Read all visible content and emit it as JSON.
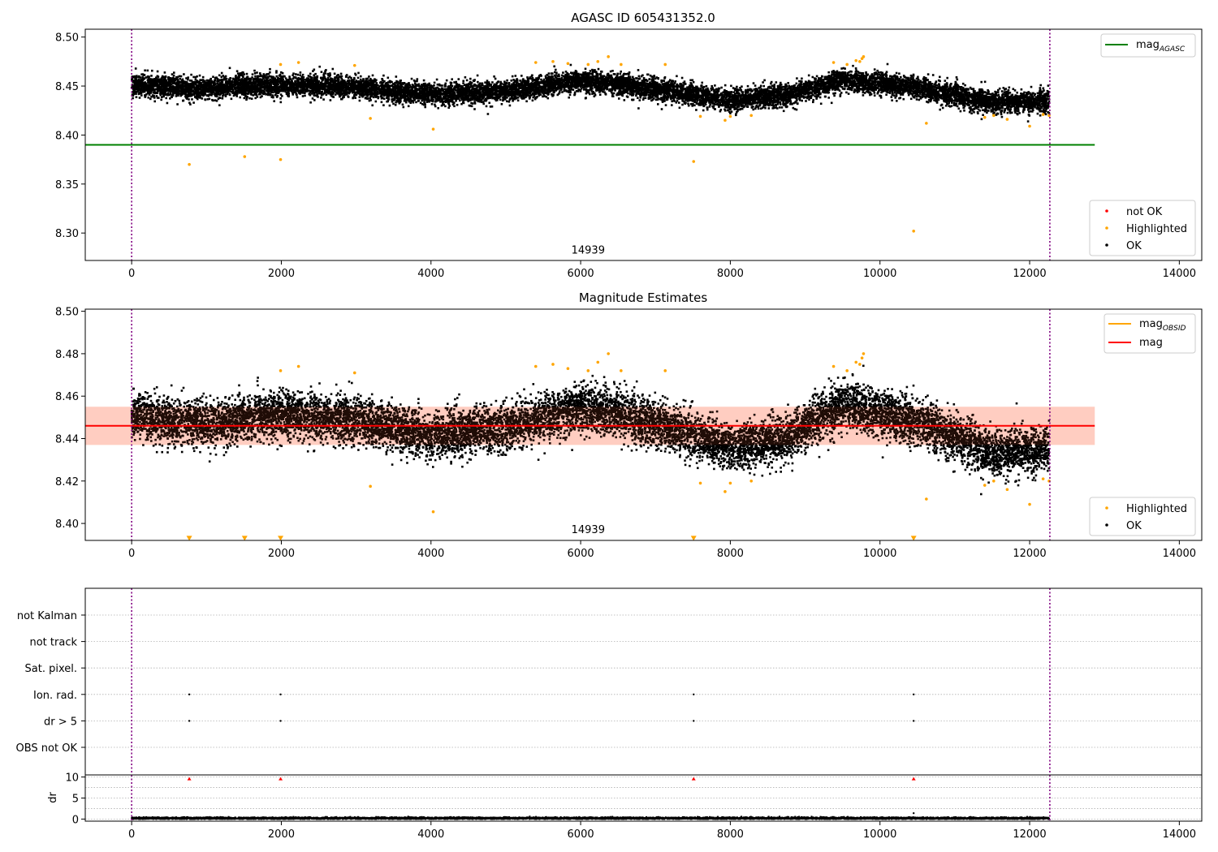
{
  "chart_data": [
    {
      "id": "p1",
      "type": "scatter",
      "title": "AGASC ID 605431352.0",
      "xlim": [
        -620,
        14300
      ],
      "ylim": [
        8.272,
        8.508
      ],
      "xticks": [
        0,
        2000,
        4000,
        6000,
        8000,
        10000,
        12000,
        14000
      ],
      "yticks": [
        8.3,
        8.35,
        8.4,
        8.45,
        8.5
      ],
      "ytick_labels": [
        "8.30",
        "8.35",
        "8.40",
        "8.45",
        "8.50"
      ],
      "obs_boundaries": [
        0,
        12270
      ],
      "obs_label": {
        "text": "14939",
        "x": 6100,
        "y": 8.279
      },
      "mag_agasc": {
        "value": 8.39,
        "x_range": [
          -620,
          12870
        ],
        "color": "#008000"
      },
      "legend_lines": [
        {
          "label": "mag",
          "sub": "AGASC",
          "color": "#008000"
        }
      ],
      "legend_points": [
        {
          "label": "not OK",
          "color": "#ff0000"
        },
        {
          "label": "Highlighted",
          "color": "#ffa500"
        },
        {
          "label": "OK",
          "color": "#000000"
        }
      ],
      "ok_points": {
        "count": 12200,
        "x_range": [
          0,
          12260
        ],
        "trend": [
          [
            0,
            8.451
          ],
          [
            1000,
            8.447
          ],
          [
            2000,
            8.452
          ],
          [
            3000,
            8.449
          ],
          [
            4000,
            8.441
          ],
          [
            5000,
            8.445
          ],
          [
            6000,
            8.455
          ],
          [
            6500,
            8.452
          ],
          [
            7000,
            8.447
          ],
          [
            8000,
            8.436
          ],
          [
            8800,
            8.441
          ],
          [
            9500,
            8.456
          ],
          [
            10000,
            8.452
          ],
          [
            10500,
            8.448
          ],
          [
            11000,
            8.441
          ],
          [
            11500,
            8.433
          ],
          [
            12260,
            8.435
          ]
        ],
        "scatter": 0.0055
      },
      "highlighted_points": [
        [
          770,
          8.37
        ],
        [
          1510,
          8.378
        ],
        [
          1990,
          8.375
        ],
        [
          7510,
          8.373
        ],
        [
          10450,
          8.302
        ],
        [
          3190,
          8.417
        ],
        [
          4030,
          8.406
        ],
        [
          7600,
          8.419
        ],
        [
          7930,
          8.415
        ],
        [
          8000,
          8.419
        ],
        [
          8280,
          8.42
        ],
        [
          10620,
          8.412
        ],
        [
          11400,
          8.418
        ],
        [
          11520,
          8.42
        ],
        [
          11700,
          8.416
        ],
        [
          12000,
          8.409
        ],
        [
          12180,
          8.421
        ],
        [
          12260,
          8.42
        ],
        [
          1990,
          8.472
        ],
        [
          2230,
          8.474
        ],
        [
          2980,
          8.471
        ],
        [
          5400,
          8.474
        ],
        [
          5630,
          8.475
        ],
        [
          5830,
          8.473
        ],
        [
          6100,
          8.472
        ],
        [
          6230,
          8.475
        ],
        [
          6370,
          8.48
        ],
        [
          6540,
          8.472
        ],
        [
          7130,
          8.472
        ],
        [
          9380,
          8.474
        ],
        [
          9560,
          8.472
        ],
        [
          9680,
          8.476
        ],
        [
          9760,
          8.478
        ],
        [
          9780,
          8.48
        ],
        [
          9730,
          8.475
        ]
      ]
    },
    {
      "id": "p2",
      "type": "scatter",
      "title": "Magnitude Estimates",
      "xlim": [
        -620,
        14300
      ],
      "ylim": [
        8.392,
        8.501
      ],
      "xticks": [
        0,
        2000,
        4000,
        6000,
        8000,
        10000,
        12000,
        14000
      ],
      "yticks": [
        8.4,
        8.42,
        8.44,
        8.46,
        8.48,
        8.5
      ],
      "ytick_labels": [
        "8.40",
        "8.42",
        "8.44",
        "8.46",
        "8.48",
        "8.50"
      ],
      "obs_boundaries": [
        0,
        12270
      ],
      "obs_label": {
        "text": "14939",
        "x": 6100,
        "y": 8.3955
      },
      "mag": {
        "value": 8.446,
        "band": [
          8.437,
          8.455
        ],
        "x_range": [
          -620,
          12870
        ],
        "color": "#ff0000",
        "band_color": "#ffdcd5"
      },
      "mag_obsid": {
        "color": "#ffa500"
      },
      "legend_lines": [
        {
          "label": "mag",
          "sub": "OBSID",
          "color": "#ffa500"
        },
        {
          "label": "mag",
          "sub": "",
          "color": "#ff0000"
        }
      ],
      "legend_points": [
        {
          "label": "Highlighted",
          "color": "#ffa500"
        },
        {
          "label": "OK",
          "color": "#000000"
        }
      ],
      "ok_points": {
        "count": 12200,
        "x_range": [
          0,
          12260
        ],
        "trend": [
          [
            0,
            8.451
          ],
          [
            1000,
            8.447
          ],
          [
            2000,
            8.452
          ],
          [
            3000,
            8.449
          ],
          [
            4000,
            8.441
          ],
          [
            5000,
            8.445
          ],
          [
            6000,
            8.455
          ],
          [
            6500,
            8.452
          ],
          [
            7000,
            8.447
          ],
          [
            8000,
            8.436
          ],
          [
            8800,
            8.441
          ],
          [
            9500,
            8.456
          ],
          [
            10000,
            8.452
          ],
          [
            10500,
            8.448
          ],
          [
            11000,
            8.441
          ],
          [
            11500,
            8.433
          ],
          [
            12260,
            8.435
          ]
        ],
        "scatter": 0.0055
      },
      "highlighted_points": [
        [
          3190,
          8.4175
        ],
        [
          4030,
          8.4055
        ],
        [
          7600,
          8.419
        ],
        [
          7930,
          8.415
        ],
        [
          8000,
          8.419
        ],
        [
          8280,
          8.42
        ],
        [
          10620,
          8.4115
        ],
        [
          11400,
          8.418
        ],
        [
          11520,
          8.42
        ],
        [
          11700,
          8.416
        ],
        [
          12000,
          8.409
        ],
        [
          12180,
          8.421
        ],
        [
          12260,
          8.42
        ],
        [
          1990,
          8.472
        ],
        [
          2230,
          8.474
        ],
        [
          2980,
          8.471
        ],
        [
          5400,
          8.474
        ],
        [
          5630,
          8.475
        ],
        [
          5830,
          8.473
        ],
        [
          6100,
          8.472
        ],
        [
          6230,
          8.476
        ],
        [
          6370,
          8.48
        ],
        [
          6540,
          8.472
        ],
        [
          7130,
          8.472
        ],
        [
          9380,
          8.474
        ],
        [
          9560,
          8.472
        ],
        [
          9680,
          8.476
        ],
        [
          9760,
          8.478
        ],
        [
          9780,
          8.48
        ],
        [
          9730,
          8.475
        ]
      ],
      "offscale_markers": {
        "x": [
          770,
          1510,
          1990,
          7510,
          10450
        ],
        "y": 8.393,
        "color": "#ffa500"
      }
    },
    {
      "id": "p3",
      "type": "scatter",
      "title": "",
      "xlim": [
        -620,
        14300
      ],
      "categories": [
        "not Kalman",
        "not track",
        "Sat. pixel.",
        "Ion. rad.",
        "dr > 5",
        "OBS not OK"
      ],
      "obs_boundaries": [
        0,
        12270
      ],
      "flag_points": [
        {
          "category": "Ion. rad.",
          "x": [
            770,
            1990,
            7510,
            10450
          ]
        },
        {
          "category": "dr > 5",
          "x": [
            770,
            1990,
            7510,
            10450
          ]
        }
      ]
    },
    {
      "id": "p4",
      "type": "scatter",
      "title": "",
      "ylabel": "dr",
      "xlim": [
        -620,
        14300
      ],
      "ylim": [
        -0.5,
        10.5
      ],
      "xticks": [
        0,
        2000,
        4000,
        6000,
        8000,
        10000,
        12000,
        14000
      ],
      "yticks": [
        0,
        5,
        10
      ],
      "ytick_labels": [
        "0",
        "5",
        "10"
      ],
      "obs_boundaries": [
        0,
        12270
      ],
      "dr_points": {
        "count": 6000,
        "x_range": [
          0,
          12260
        ],
        "typical": 0.2,
        "scatter": 0.12
      },
      "dr_outlier": [
        [
          10450,
          1.4
        ]
      ],
      "dr_capped_markers": {
        "x": [
          770,
          1990,
          7510,
          10450
        ],
        "y": 9.6,
        "color": "#ff0000"
      }
    }
  ]
}
